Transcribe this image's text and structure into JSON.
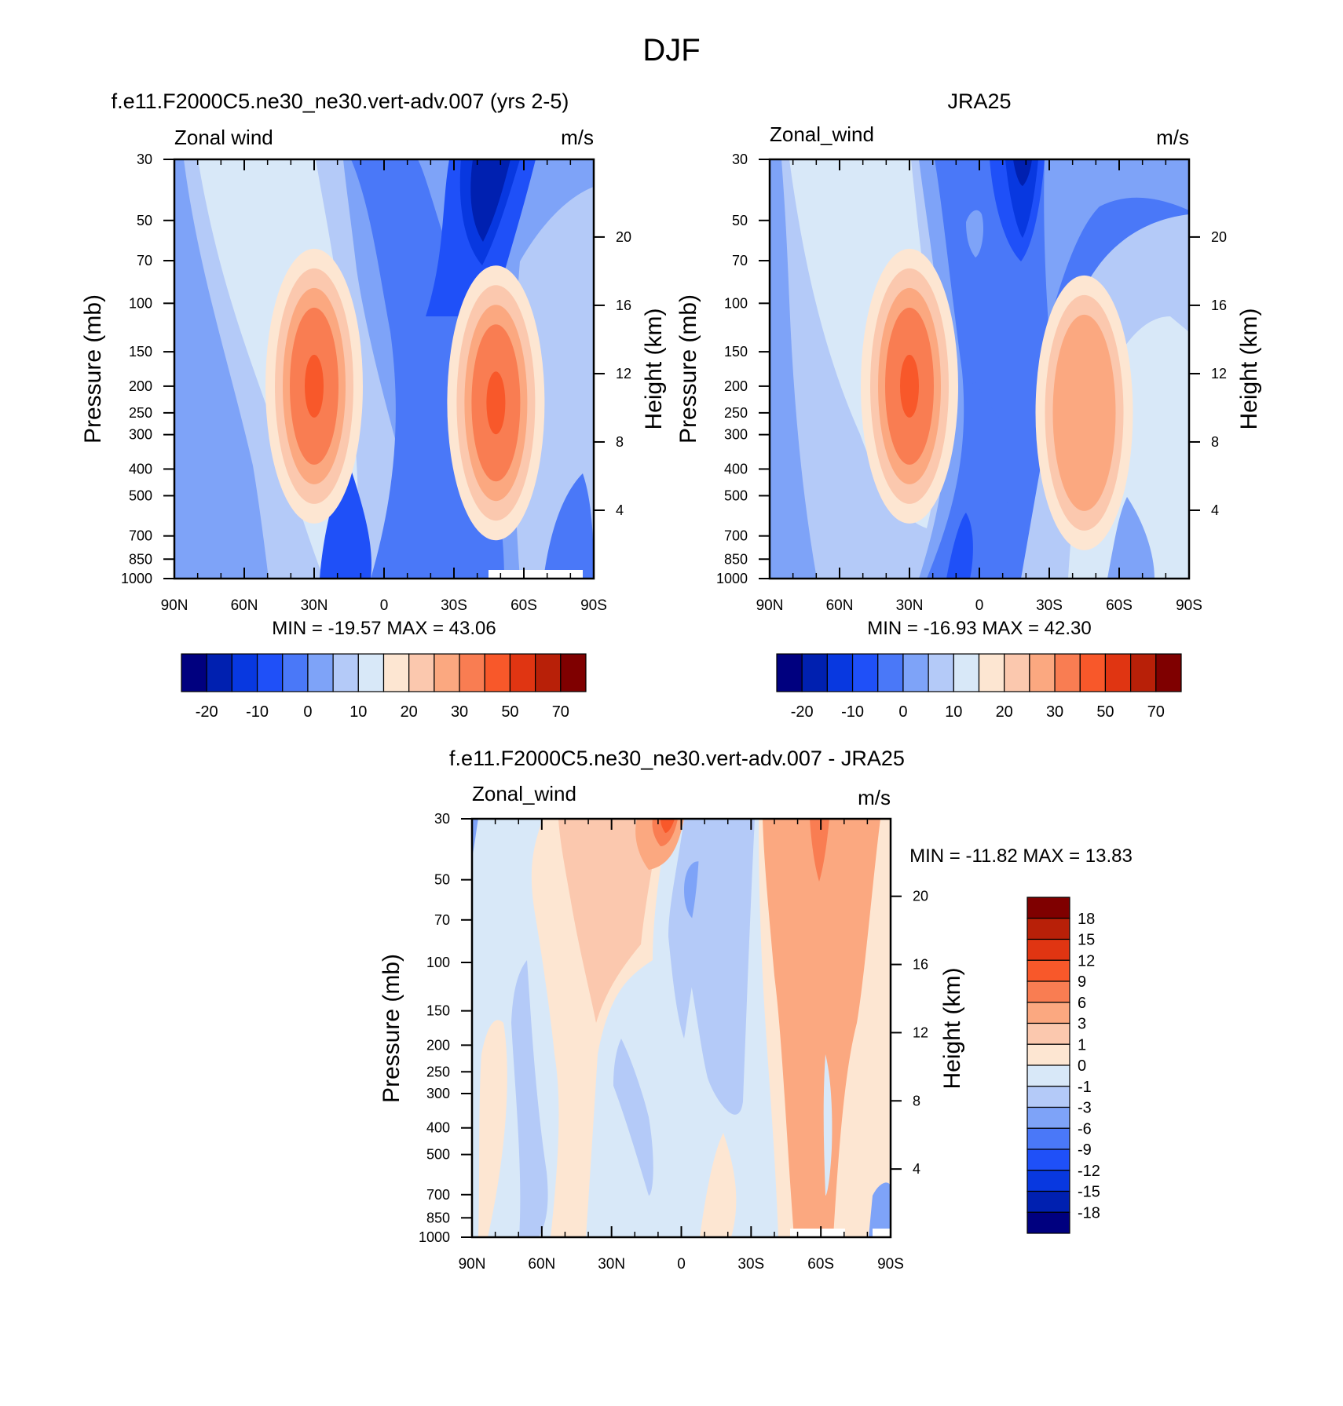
{
  "title": "DJF",
  "chart_data": [
    {
      "type": "heatmap",
      "id": "model",
      "title": "f.e11.F2000C5.ne30_ne30.vert-adv.007 (yrs 2-5)",
      "left_string": "Zonal wind",
      "right_string": "m/s",
      "ylabel": "Pressure (mb)",
      "y2label": "Height (km)",
      "x_ticks": [
        "90N",
        "60N",
        "30N",
        "0",
        "30S",
        "60S",
        "90S"
      ],
      "y_ticks": [
        "30",
        "50",
        "70",
        "100",
        "150",
        "200",
        "250",
        "300",
        "400",
        "500",
        "700",
        "850",
        "1000"
      ],
      "height_ticks": [
        "20",
        "16",
        "12",
        "8",
        "4"
      ],
      "stats": "MIN = -19.57  MAX =  43.06",
      "min": -19.57,
      "max": 43.06,
      "jets": [
        {
          "lat": 30,
          "pressure": 200,
          "peak": 43
        },
        {
          "lat": -48,
          "pressure": 230,
          "peak": 40
        }
      ],
      "colorbar": {
        "orientation": "horizontal",
        "labels": [
          "-20",
          "-10",
          "0",
          "10",
          "20",
          "30",
          "50",
          "70"
        ]
      }
    },
    {
      "type": "heatmap",
      "id": "obs",
      "title": "JRA25",
      "left_string": "Zonal_wind",
      "right_string": "m/s",
      "ylabel": "Pressure (mb)",
      "y2label": "Height (km)",
      "x_ticks": [
        "90N",
        "60N",
        "30N",
        "0",
        "30S",
        "60S",
        "90S"
      ],
      "y_ticks": [
        "30",
        "50",
        "70",
        "100",
        "150",
        "200",
        "250",
        "300",
        "400",
        "500",
        "700",
        "850",
        "1000"
      ],
      "height_ticks": [
        "20",
        "16",
        "12",
        "8",
        "4"
      ],
      "stats": "MIN = -16.93  MAX =  42.30",
      "min": -16.93,
      "max": 42.3,
      "jets": [
        {
          "lat": 30,
          "pressure": 200,
          "peak": 42
        },
        {
          "lat": -45,
          "pressure": 250,
          "peak": 34
        }
      ],
      "colorbar": {
        "orientation": "horizontal",
        "labels": [
          "-20",
          "-10",
          "0",
          "10",
          "20",
          "30",
          "50",
          "70"
        ]
      }
    },
    {
      "type": "heatmap",
      "id": "diff",
      "title": "f.e11.F2000C5.ne30_ne30.vert-adv.007 - JRA25",
      "left_string": "Zonal_wind",
      "right_string": "m/s",
      "ylabel": "Pressure (mb)",
      "y2label": "Height (km)",
      "x_ticks": [
        "90N",
        "60N",
        "30N",
        "0",
        "30S",
        "60S",
        "90S"
      ],
      "y_ticks": [
        "30",
        "50",
        "70",
        "100",
        "150",
        "200",
        "250",
        "300",
        "400",
        "500",
        "700",
        "850",
        "1000"
      ],
      "height_ticks": [
        "20",
        "16",
        "12",
        "8",
        "4"
      ],
      "stats": "MIN = -11.82  MAX =  13.83",
      "min": -11.82,
      "max": 13.83,
      "colorbar": {
        "orientation": "vertical",
        "labels": [
          "18",
          "15",
          "12",
          "9",
          "6",
          "3",
          "1",
          "0",
          "-1",
          "-3",
          "-6",
          "-9",
          "-12",
          "-15",
          "-18"
        ]
      }
    }
  ],
  "colors": {
    "abs_levels": [
      "#00007f",
      "#0020b0",
      "#0838e0",
      "#1f50f8",
      "#4a78f8",
      "#7ea3f8",
      "#b4caf8",
      "#d8e8f8",
      "#fde6d2",
      "#fbc8ae",
      "#fba880",
      "#f97d52",
      "#f8582a",
      "#e03512",
      "#b82008",
      "#7f0000"
    ],
    "diff_levels": [
      "#7f0000",
      "#b82008",
      "#e03512",
      "#f8582a",
      "#f97d52",
      "#fba880",
      "#fbc8ae",
      "#fde6d2",
      "#d8e8f8",
      "#b4caf8",
      "#7ea3f8",
      "#4a78f8",
      "#1f50f8",
      "#0838e0",
      "#0020b0",
      "#00007f"
    ]
  }
}
